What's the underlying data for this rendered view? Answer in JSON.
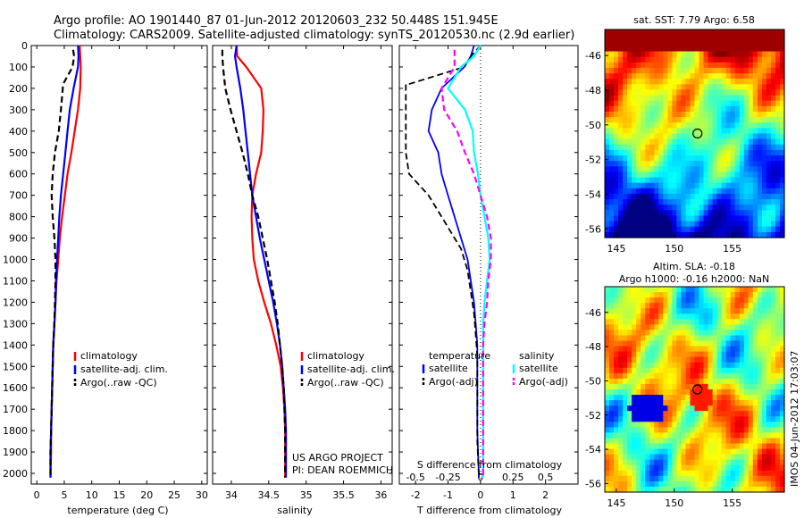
{
  "header": {
    "line1": "Argo profile: AO 1901440_87 01-Jun-2012 20120603_232 50.448S 151.945E",
    "line2": "Climatology: CARS2009. Satellite-adjusted climatology: synTS_20120530.nc (2.9d earlier)"
  },
  "colors": {
    "climatology": "#ff0000",
    "satellite": "#0000ff",
    "argo": "#000000",
    "satellite_salinity": "#00ffff",
    "argo_salinity": "#ff00ff"
  },
  "chart_data": [
    {
      "type": "line",
      "xlabel": "temperature (deg C)",
      "xlim": [
        -1,
        31
      ],
      "ylim": [
        2050,
        0
      ],
      "xticks": [
        "0",
        "5",
        "10",
        "15",
        "20",
        "25",
        "30"
      ],
      "yticks": [
        "0",
        "100",
        "200",
        "300",
        "400",
        "500",
        "600",
        "700",
        "800",
        "900",
        "1000",
        "1100",
        "1200",
        "1300",
        "1400",
        "1500",
        "1600",
        "1700",
        "1800",
        "1900",
        "2000"
      ],
      "legend": [
        "climatology",
        "satellite-adj. clim.",
        "Argo(..raw -QC)"
      ],
      "series": [
        {
          "name": "climatology",
          "x": [
            7.8,
            7.9,
            8.0,
            7.9,
            7.5,
            6.9,
            6.3,
            5.6,
            5.1,
            4.6,
            4.2,
            3.9,
            3.6,
            3.4,
            3.2,
            3.0,
            2.9,
            2.8,
            2.7,
            2.6,
            2.6,
            2.5
          ],
          "y": [
            0,
            50,
            100,
            200,
            300,
            400,
            500,
            600,
            700,
            800,
            900,
            1000,
            1100,
            1200,
            1300,
            1400,
            1500,
            1600,
            1700,
            1800,
            1900,
            2020
          ]
        },
        {
          "name": "satellite-adj. clim.",
          "x": [
            7.5,
            7.6,
            7.5,
            6.7,
            6.0,
            5.6,
            5.2,
            4.8,
            4.4,
            4.1,
            3.9,
            3.7,
            3.5,
            3.4,
            3.2,
            3.0,
            2.9,
            2.8,
            2.7,
            2.6,
            2.5,
            2.5
          ],
          "y": [
            0,
            50,
            100,
            200,
            300,
            400,
            500,
            600,
            700,
            800,
            900,
            1000,
            1100,
            1200,
            1300,
            1400,
            1500,
            1600,
            1700,
            1800,
            1900,
            2020
          ]
        },
        {
          "name": "Argo(..raw -QC)",
          "x": [
            6.6,
            6.8,
            6.5,
            4.8,
            4.4,
            4.0,
            3.3,
            2.9,
            2.7,
            2.9,
            3.2,
            3.4,
            3.4,
            3.3,
            3.2,
            3.0,
            2.9,
            2.8,
            2.7,
            2.6,
            2.5,
            2.5
          ],
          "y": [
            20,
            50,
            100,
            180,
            300,
            400,
            500,
            600,
            700,
            800,
            900,
            1000,
            1100,
            1200,
            1300,
            1400,
            1500,
            1600,
            1700,
            1800,
            1900,
            2020
          ]
        }
      ]
    },
    {
      "type": "line",
      "xlabel": "salinity",
      "xlim": [
        33.75,
        36.15
      ],
      "ylim": [
        2050,
        0
      ],
      "xticks": [
        "34",
        "34.5",
        "35",
        "35.5",
        "36"
      ],
      "legend": [
        "climatology",
        "satellite-adj. clim.",
        "Argo(..raw -QC)"
      ],
      "annotations": [
        "US ARGO PROJECT",
        "PI: DEAN ROEMMICH"
      ],
      "series": [
        {
          "name": "climatology",
          "x": [
            34.07,
            34.08,
            34.2,
            34.4,
            34.43,
            34.42,
            34.4,
            34.33,
            34.28,
            34.27,
            34.28,
            34.3,
            34.36,
            34.44,
            34.53,
            34.6,
            34.66,
            34.69,
            34.71,
            34.72,
            34.72,
            34.72
          ],
          "y": [
            0,
            50,
            100,
            200,
            300,
            400,
            500,
            600,
            700,
            800,
            900,
            1000,
            1100,
            1200,
            1300,
            1400,
            1500,
            1600,
            1700,
            1800,
            1900,
            2020
          ]
        },
        {
          "name": "satellite-adj. clim.",
          "x": [
            34.07,
            34.05,
            34.07,
            34.12,
            34.16,
            34.19,
            34.22,
            34.25,
            34.28,
            34.33,
            34.38,
            34.44,
            34.5,
            34.56,
            34.61,
            34.65,
            34.68,
            34.7,
            34.72,
            34.73,
            34.73,
            34.73
          ],
          "y": [
            0,
            50,
            100,
            200,
            300,
            400,
            500,
            600,
            700,
            800,
            900,
            1000,
            1100,
            1200,
            1300,
            1400,
            1500,
            1600,
            1700,
            1800,
            1900,
            2020
          ]
        },
        {
          "name": "Argo(..raw -QC)",
          "x": [
            33.88,
            33.88,
            33.89,
            33.92,
            33.99,
            34.07,
            34.15,
            34.22,
            34.28,
            34.36,
            34.42,
            34.48,
            34.53,
            34.58,
            34.62,
            34.65,
            34.68,
            34.7,
            34.71,
            34.72,
            34.72,
            34.72
          ],
          "y": [
            20,
            50,
            100,
            200,
            300,
            400,
            500,
            600,
            700,
            800,
            900,
            1000,
            1100,
            1200,
            1300,
            1400,
            1500,
            1600,
            1700,
            1800,
            1900,
            2020
          ]
        }
      ]
    },
    {
      "type": "line",
      "xlabel": "T difference from climatology",
      "xlabel_top": "S difference from climatology",
      "xlim": [
        -2.5,
        3.0
      ],
      "ylim": [
        2050,
        0
      ],
      "xticks": [
        "-2",
        "-1",
        "0",
        "1",
        "2"
      ],
      "xticks_s": [
        "-0.5",
        "-0.25",
        "0",
        "0.25",
        "0.5"
      ],
      "legend_title_t": "temperature",
      "legend_title_s": "salinity",
      "legend": [
        "satellite",
        "Argo(-adj)",
        "satellite",
        "Argo(-adj)"
      ],
      "series": [
        {
          "name": "temperature satellite",
          "x": [
            -0.2,
            -0.3,
            -0.5,
            -1.2,
            -1.5,
            -1.6,
            -1.3,
            -1.2,
            -1.0,
            -0.8,
            -0.6,
            -0.4,
            -0.3,
            -0.2,
            -0.15,
            -0.1,
            -0.1,
            -0.1,
            -0.1,
            -0.1,
            -0.05
          ],
          "y": [
            0,
            50,
            100,
            200,
            300,
            400,
            500,
            600,
            700,
            800,
            900,
            1000,
            1100,
            1200,
            1300,
            1400,
            1500,
            1600,
            1700,
            1800,
            2020
          ]
        },
        {
          "name": "temperature Argo(-adj)",
          "x": [
            0.0,
            -0.3,
            -0.5,
            -2.2,
            -2.3,
            -2.3,
            -2.2,
            -1.6,
            -1.2,
            -0.8,
            -0.6,
            -0.4,
            -0.3,
            -0.2,
            -0.15,
            -0.1,
            -0.1,
            -0.1,
            -0.1,
            -0.1,
            -0.05
          ],
          "y": [
            0,
            50,
            100,
            180,
            180,
            500,
            600,
            700,
            800,
            900,
            950,
            1050,
            1150,
            1250,
            1350,
            1450,
            1550,
            1650,
            1750,
            1850,
            2020
          ]
        },
        {
          "name": "salinity satellite",
          "x": [
            0.0,
            -0.05,
            -0.15,
            -0.25,
            -0.12,
            -0.06,
            -0.05,
            -0.02,
            0.0,
            0.03,
            0.06,
            0.07,
            0.05,
            0.03,
            0.02,
            0.02,
            0.02,
            0.02,
            0.02,
            0.02
          ],
          "y": [
            0,
            50,
            100,
            200,
            300,
            400,
            500,
            600,
            700,
            800,
            900,
            1000,
            1100,
            1200,
            1300,
            1400,
            1500,
            1600,
            1700,
            2020
          ]
        },
        {
          "name": "salinity Argo(-adj)",
          "x": [
            -0.2,
            -0.2,
            -0.2,
            -0.3,
            -0.28,
            -0.18,
            -0.12,
            -0.05,
            0.0,
            0.05,
            0.08,
            0.08,
            0.06,
            0.05,
            0.03,
            0.02,
            0.02,
            0.02,
            0.02
          ],
          "y": [
            20,
            50,
            100,
            200,
            300,
            400,
            500,
            600,
            700,
            800,
            900,
            1000,
            1100,
            1200,
            1300,
            1400,
            1500,
            1600,
            2020
          ]
        }
      ]
    },
    {
      "type": "heatmap",
      "title": "sat. SST: 7.79  Argo: 6.58",
      "xticks": [
        "145",
        "150",
        "155"
      ],
      "yticks": [
        "-46",
        "-48",
        "-50",
        "-52",
        "-54",
        "-56"
      ],
      "xlim": [
        144,
        159.5
      ],
      "ylim": [
        -56.5,
        -44.5
      ],
      "marker": {
        "lon": 152,
        "lat": -50.5
      }
    },
    {
      "type": "heatmap",
      "title_line1": "Altim. SLA: -0.18",
      "title_line2": "Argo h1000: -0.16  h2000: NaN",
      "xticks": [
        "145",
        "150",
        "155"
      ],
      "yticks": [
        "-46",
        "-48",
        "-50",
        "-52",
        "-54",
        "-56"
      ],
      "xlim": [
        144,
        159.5
      ],
      "ylim": [
        -56.5,
        -44.5
      ],
      "marker": {
        "lon": 152,
        "lat": -50.5
      }
    }
  ],
  "footer": {
    "timestamp": "IMOS 04-Jun-2012 17:03:07"
  }
}
